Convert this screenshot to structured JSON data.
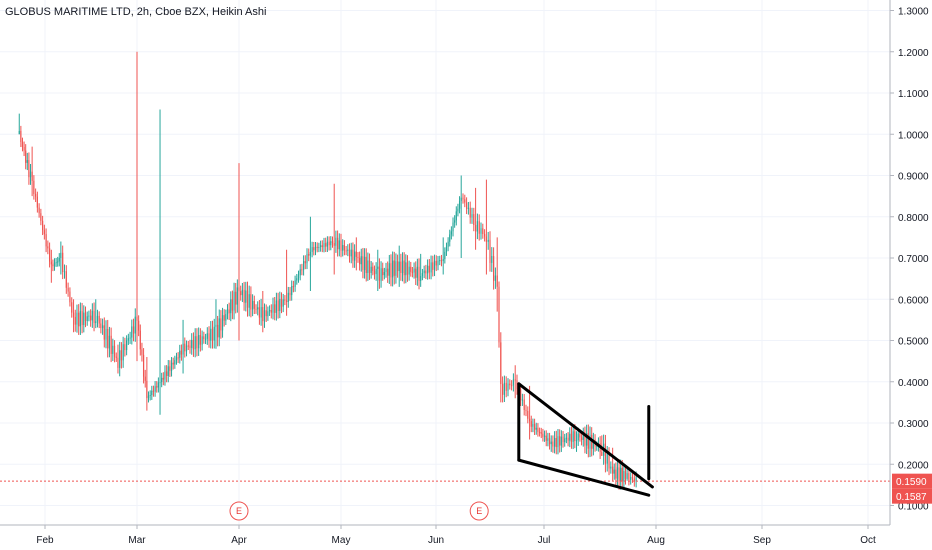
{
  "title": "GLOBUS MARITIME LTD, 2h, Cboe BZX, Heikin Ashi",
  "colors": {
    "up": "#26a69a",
    "down": "#ef5350",
    "grid": "#f0f3fa",
    "axis": "#b2b5be",
    "badge": "#ef5350",
    "drawing": "#000000"
  },
  "chart_data": {
    "type": "candlestick",
    "title": "GLOBUS MARITIME LTD, 2h, Cboe BZX, Heikin Ashi",
    "x_ticks": [
      "Feb",
      "Mar",
      "Apr",
      "May",
      "Jun",
      "Jul",
      "Aug",
      "Sep",
      "Oct"
    ],
    "y_ticks": [
      "0.1000",
      "0.2000",
      "0.3000",
      "0.4000",
      "0.5000",
      "0.6000",
      "0.7000",
      "0.8000",
      "0.9000",
      "1.0000",
      "1.1000",
      "1.2000",
      "1.3000"
    ],
    "ylim": [
      0.07,
      1.33
    ],
    "price_labels": [
      "0.1590",
      "0.1587"
    ],
    "price_line": 0.159,
    "earnings_markers": [
      {
        "label": "E",
        "date": "Apr 1"
      },
      {
        "label": "E",
        "date": "Jun 13"
      }
    ],
    "series": [
      {
        "x": "Jan 26",
        "low": 1.0,
        "high": 1.05,
        "close": 1.0
      },
      {
        "x": "Jan 29",
        "low": 0.85,
        "high": 0.97,
        "close": 0.88
      },
      {
        "x": "Feb 3",
        "low": 0.64,
        "high": 0.72,
        "close": 0.68
      },
      {
        "x": "Feb 6",
        "low": 0.66,
        "high": 0.74,
        "close": 0.7
      },
      {
        "x": "Feb 10",
        "low": 0.52,
        "high": 0.6,
        "close": 0.55
      },
      {
        "x": "Feb 17",
        "low": 0.53,
        "high": 0.6,
        "close": 0.56
      },
      {
        "x": "Feb 24",
        "low": 0.42,
        "high": 0.49,
        "close": 0.45
      },
      {
        "x": "Mar 1",
        "low": 0.45,
        "high": 1.2,
        "close": 0.55
      },
      {
        "x": "Mar 4",
        "low": 0.33,
        "high": 0.46,
        "close": 0.36
      },
      {
        "x": "Mar 8",
        "low": 0.32,
        "high": 1.06,
        "close": 0.4
      },
      {
        "x": "Mar 15",
        "low": 0.42,
        "high": 0.55,
        "close": 0.48
      },
      {
        "x": "Mar 25",
        "low": 0.48,
        "high": 0.6,
        "close": 0.52
      },
      {
        "x": "Apr 1",
        "low": 0.5,
        "high": 0.93,
        "close": 0.62
      },
      {
        "x": "Apr 8",
        "low": 0.52,
        "high": 0.62,
        "close": 0.56
      },
      {
        "x": "Apr 15",
        "low": 0.56,
        "high": 0.72,
        "close": 0.6
      },
      {
        "x": "Apr 22",
        "low": 0.62,
        "high": 0.8,
        "close": 0.72
      },
      {
        "x": "Apr 29",
        "low": 0.66,
        "high": 0.88,
        "close": 0.74
      },
      {
        "x": "May 6",
        "low": 0.67,
        "high": 0.75,
        "close": 0.7
      },
      {
        "x": "May 13",
        "low": 0.62,
        "high": 0.72,
        "close": 0.66
      },
      {
        "x": "May 20",
        "low": 0.63,
        "high": 0.73,
        "close": 0.68
      },
      {
        "x": "May 27",
        "low": 0.63,
        "high": 0.71,
        "close": 0.66
      },
      {
        "x": "Jun 3",
        "low": 0.66,
        "high": 0.75,
        "close": 0.7
      },
      {
        "x": "Jun 8",
        "low": 0.7,
        "high": 0.9,
        "close": 0.85
      },
      {
        "x": "Jun 12",
        "low": 0.72,
        "high": 0.87,
        "close": 0.78
      },
      {
        "x": "Jun 15",
        "low": 0.66,
        "high": 0.89,
        "close": 0.75
      },
      {
        "x": "Jun 18",
        "low": 0.57,
        "high": 0.75,
        "close": 0.62
      },
      {
        "x": "Jun 19",
        "low": 0.35,
        "high": 0.52,
        "close": 0.38
      },
      {
        "x": "Jun 23",
        "low": 0.36,
        "high": 0.44,
        "close": 0.4
      },
      {
        "x": "Jun 27",
        "low": 0.26,
        "high": 0.39,
        "close": 0.3
      },
      {
        "x": "Jul 3",
        "low": 0.23,
        "high": 0.27,
        "close": 0.25
      },
      {
        "x": "Jul 10",
        "low": 0.23,
        "high": 0.28,
        "close": 0.27
      },
      {
        "x": "Jul 17",
        "low": 0.22,
        "high": 0.27,
        "close": 0.24
      },
      {
        "x": "Jul 20",
        "low": 0.16,
        "high": 0.24,
        "close": 0.18
      },
      {
        "x": "Jul 24",
        "low": 0.16,
        "high": 0.19,
        "close": 0.17
      },
      {
        "x": "Jul 27",
        "low": 0.158,
        "high": 0.17,
        "close": 0.159
      }
    ],
    "drawings": [
      {
        "label": "wedge-upper",
        "from": {
          "x": "Jun 24",
          "y": 0.395
        },
        "to": {
          "x": "Jul 31",
          "y": 0.145
        }
      },
      {
        "label": "wedge-lower",
        "from": {
          "x": "Jun 24",
          "y": 0.21
        },
        "to": {
          "x": "Jul 30",
          "y": 0.125
        }
      },
      {
        "label": "wedge-left",
        "from": {
          "x": "Jun 24",
          "y": 0.395
        },
        "to": {
          "x": "Jun 24",
          "y": 0.21
        }
      },
      {
        "label": "target-line",
        "from": {
          "x": "Jul 30",
          "y": 0.34
        },
        "to": {
          "x": "Jul 30",
          "y": 0.165
        }
      }
    ]
  }
}
